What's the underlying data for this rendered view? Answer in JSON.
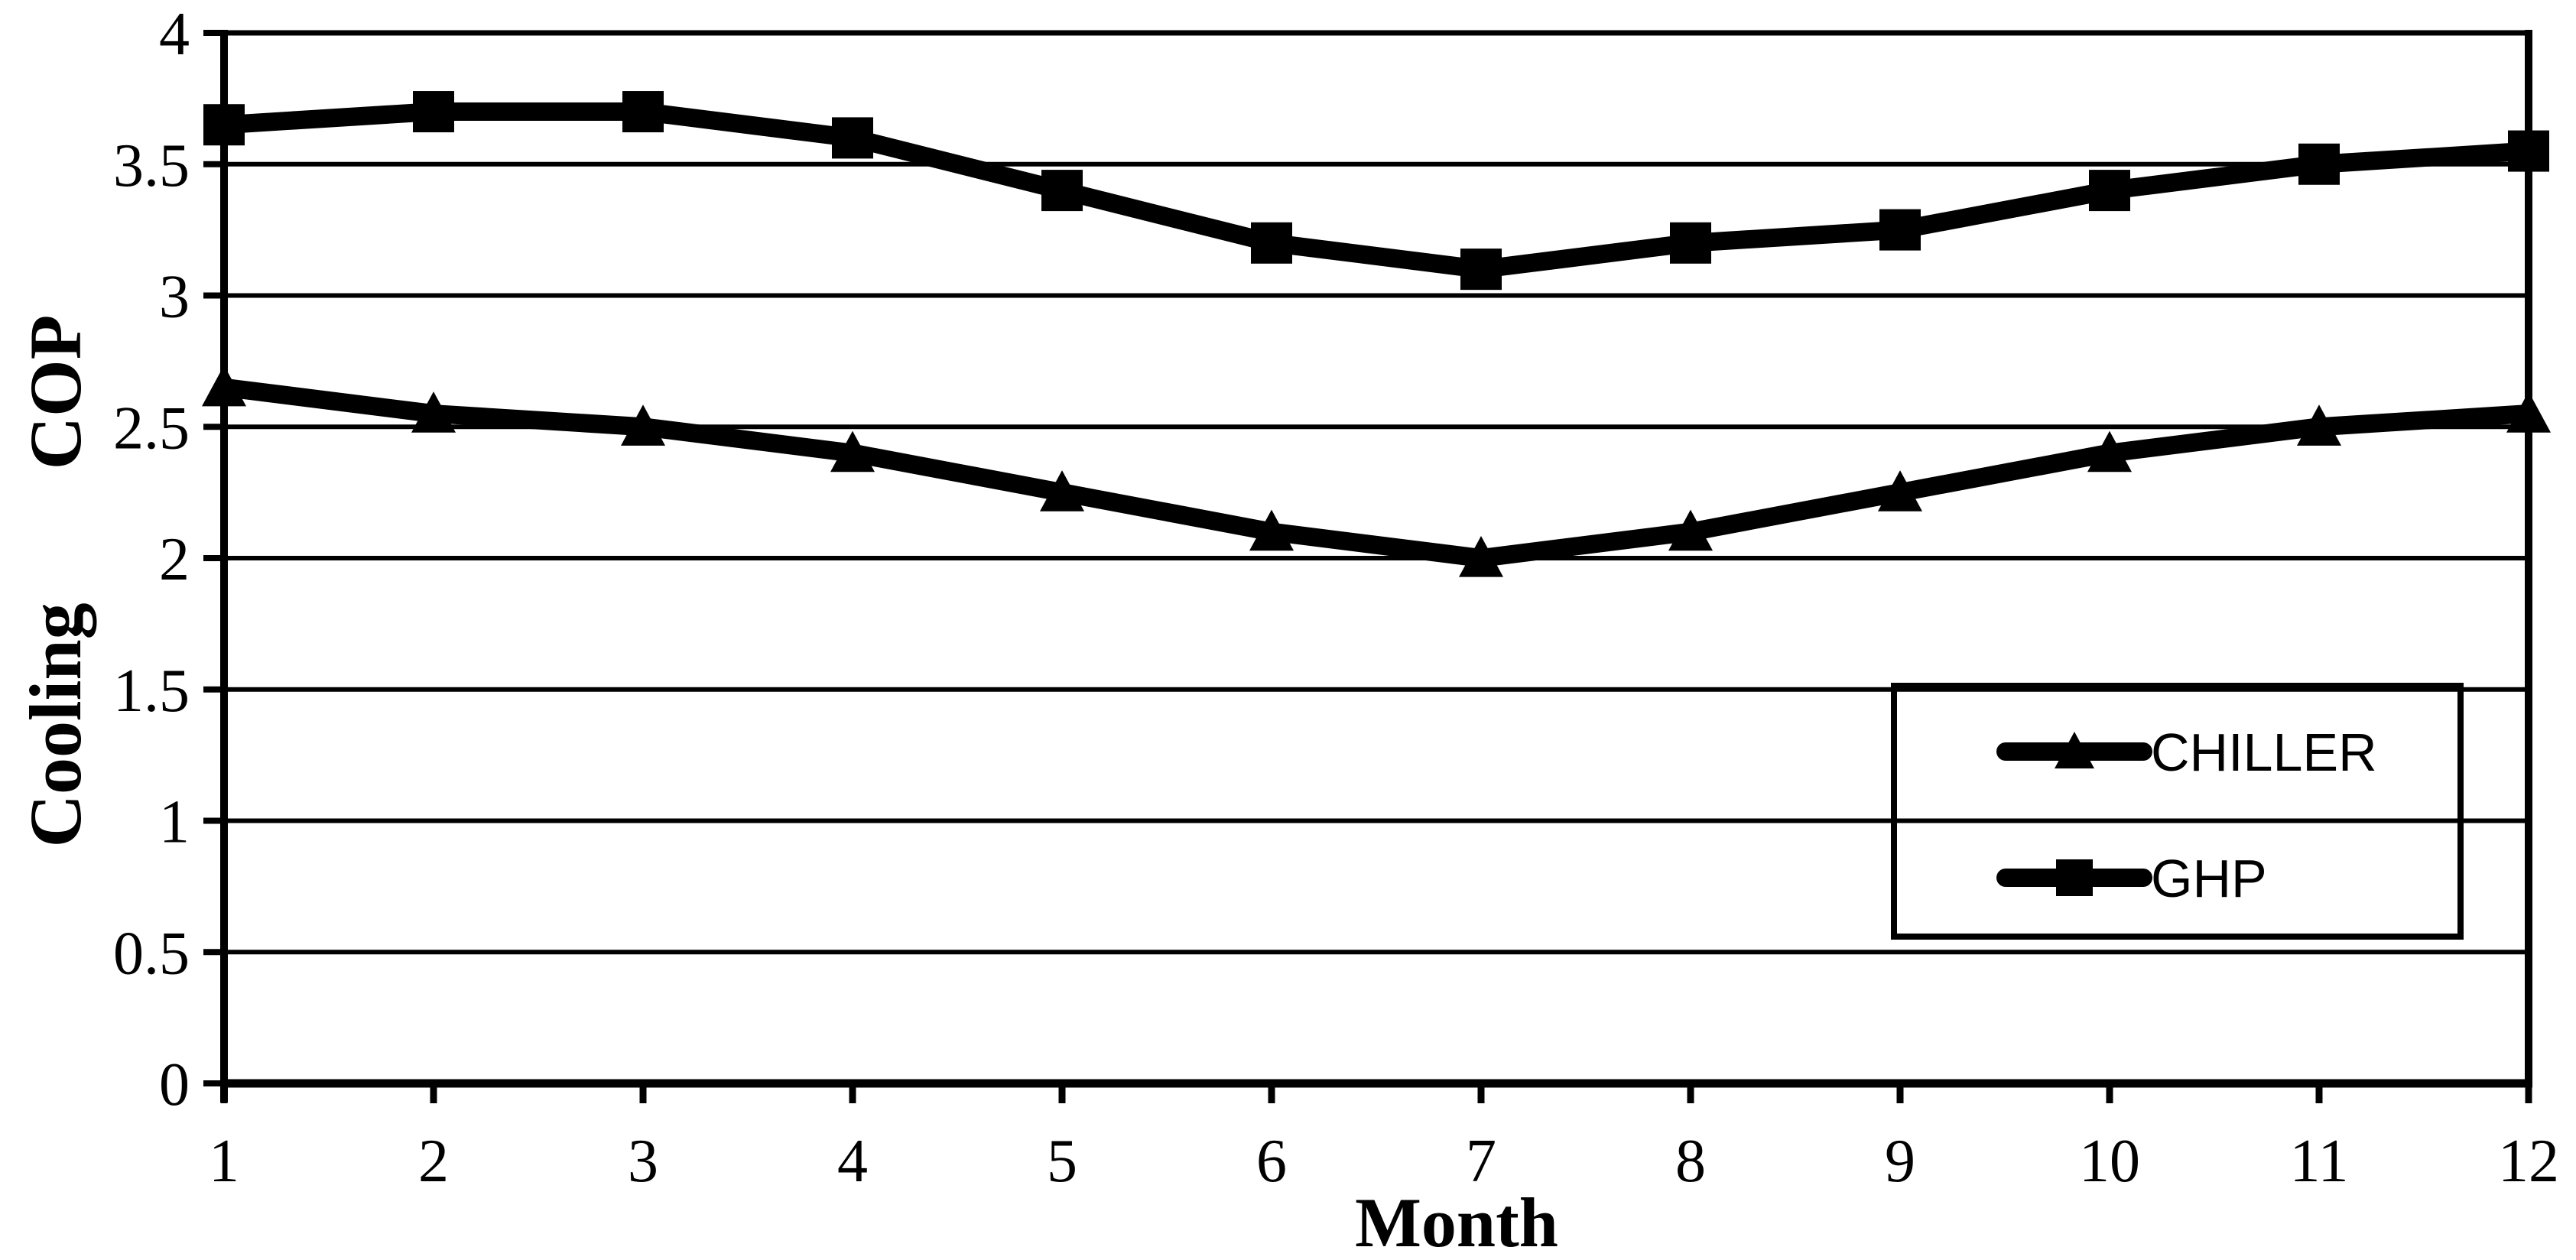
{
  "chart_data": {
    "type": "line",
    "title": "",
    "xlabel": "Month",
    "ylabel": "Cooling COP",
    "x": [
      1,
      2,
      3,
      4,
      5,
      6,
      7,
      8,
      9,
      10,
      11,
      12
    ],
    "xticks": [
      "1",
      "2",
      "3",
      "4",
      "5",
      "6",
      "7",
      "8",
      "9",
      "10",
      "11",
      "12"
    ],
    "yticks": [
      "0",
      "0.5",
      "1",
      "1.5",
      "2",
      "2.5",
      "3",
      "3.5",
      "4"
    ],
    "ylim": [
      0,
      4
    ],
    "ytick_step": 0.5,
    "grid": true,
    "legend_position": "inside-lower-right",
    "line_color": "#000000",
    "background_color": "#ffffff",
    "series": [
      {
        "name": "CHILLER",
        "marker": "triangle",
        "values": [
          2.65,
          2.55,
          2.5,
          2.4,
          2.25,
          2.1,
          2.0,
          2.1,
          2.25,
          2.4,
          2.5,
          2.55
        ]
      },
      {
        "name": "GHP",
        "marker": "square",
        "values": [
          3.65,
          3.7,
          3.7,
          3.6,
          3.4,
          3.2,
          3.1,
          3.2,
          3.25,
          3.4,
          3.5,
          3.55
        ]
      }
    ]
  },
  "axes": {
    "x_title": "Month",
    "y_title": "Cooling COP"
  },
  "legend": {
    "items": [
      {
        "label": "CHILLER",
        "marker": "triangle"
      },
      {
        "label": "GHP",
        "marker": "square"
      }
    ]
  }
}
